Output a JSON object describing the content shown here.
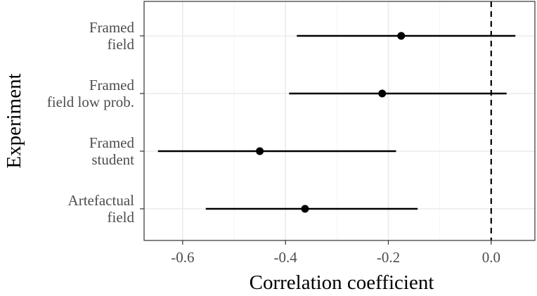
{
  "chart_data": {
    "type": "forest",
    "xlabel": "Correlation coefficient",
    "ylabel": "Experiment",
    "xlim": [
      -0.675,
      0.085
    ],
    "xticks": [
      -0.6,
      -0.4,
      -0.2,
      0.0
    ],
    "xtick_labels": [
      "-0.6",
      "-0.4",
      "-0.2",
      "0.0"
    ],
    "reference_line": 0.0,
    "grid": true,
    "categories": [
      {
        "label_lines": [
          "Framed",
          "field"
        ],
        "estimate": -0.175,
        "lower": -0.378,
        "upper": 0.047
      },
      {
        "label_lines": [
          "Framed",
          "field low prob."
        ],
        "estimate": -0.212,
        "lower": -0.393,
        "upper": 0.03
      },
      {
        "label_lines": [
          "Framed",
          "student"
        ],
        "estimate": -0.45,
        "lower": -0.648,
        "upper": -0.185
      },
      {
        "label_lines": [
          "Artefactual",
          "field"
        ],
        "estimate": -0.362,
        "lower": -0.555,
        "upper": -0.143
      }
    ],
    "colors": {
      "panel_border": "#333333",
      "grid_major": "#ebebeb",
      "grid_minor": "#f5f5f5",
      "marks": "#000000",
      "tick_text": "#4d4d4d",
      "axis_title": "#000000"
    }
  }
}
